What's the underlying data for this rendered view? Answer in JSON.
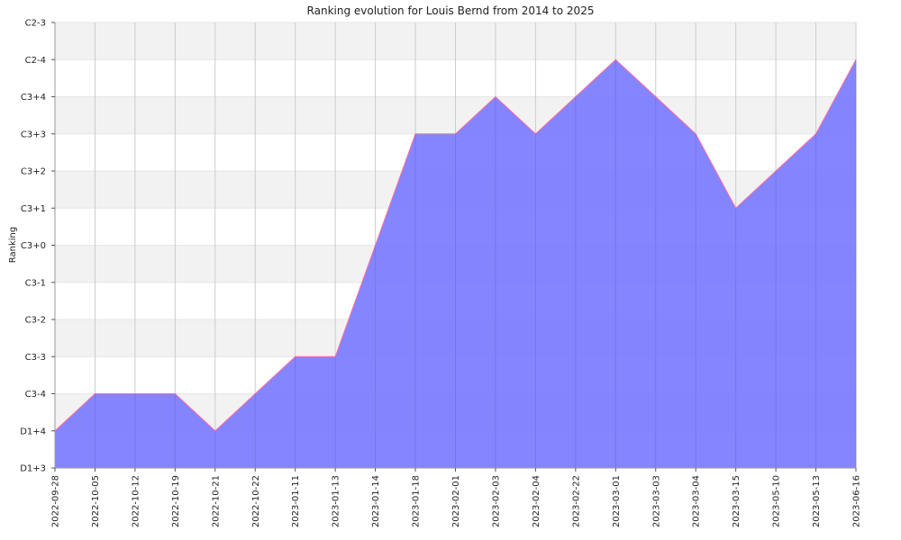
{
  "chart_data": {
    "type": "area",
    "title": "Ranking evolution for Louis Bernd from 2014 to 2025",
    "xlabel": "",
    "ylabel": "Ranking",
    "y_categories": [
      "D1+3",
      "D1+4",
      "C3-4",
      "C3-3",
      "C3-2",
      "C3-1",
      "C3+0",
      "C3+1",
      "C3+2",
      "C3+3",
      "C3+4",
      "C2-4",
      "C2-3"
    ],
    "x": [
      "2022-09-28",
      "2022-10-05",
      "2022-10-12",
      "2022-10-19",
      "2022-10-21",
      "2022-10-22",
      "2023-01-11",
      "2023-01-13",
      "2023-01-14",
      "2023-01-18",
      "2023-02-01",
      "2023-02-03",
      "2023-02-04",
      "2023-02-22",
      "2023-03-01",
      "2023-03-03",
      "2023-03-04",
      "2023-03-15",
      "2023-05-10",
      "2023-05-13",
      "2023-06-16"
    ],
    "series": [
      {
        "values": [
          "D1+4",
          "C3-4",
          "C3-4",
          "C3-4",
          "D1+4",
          "C3-4",
          "C3-3",
          "C3-3",
          "C3+0",
          "C3+3",
          "C3+3",
          "C3+4",
          "C3+3",
          "C3+4",
          "C2-4",
          "C3+4",
          "C3+3",
          "C3+1",
          "C3+2",
          "C3+3",
          "C2-4"
        ]
      }
    ],
    "fill_color": "#7b7bff",
    "line_color": "#ff6f9f",
    "band_color": "#f2f2f2",
    "grid_color": "#cccccc",
    "grid": true,
    "legend": "none"
  }
}
